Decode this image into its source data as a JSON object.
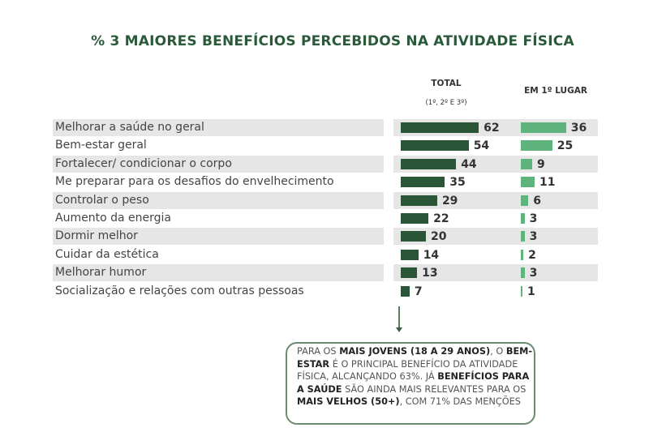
{
  "chart_data": {
    "type": "bar",
    "orientation": "horizontal",
    "title": "% 3 MAIORES BENEFÍCIOS PERCEBIDOS NA ATIVIDADE FÍSICA",
    "categories": [
      "Melhorar a saúde no geral",
      "Bem-estar geral",
      "Fortalecer/ condicionar o corpo",
      "Me preparar para os desafios do envelhecimento",
      "Controlar o peso",
      "Aumento da energia",
      "Dormir melhor",
      "Cuidar da estética",
      "Melhorar humor",
      "Socialização e relações com outras pessoas"
    ],
    "series": [
      {
        "name": "TOTAL",
        "subtitle": "(1º, 2º E 3º)",
        "color": "#2a5637",
        "values": [
          62,
          54,
          44,
          35,
          29,
          22,
          20,
          14,
          13,
          7
        ]
      },
      {
        "name": "EM 1º LUGAR",
        "color": "#5fb37c",
        "values": [
          36,
          25,
          9,
          11,
          6,
          3,
          3,
          2,
          3,
          1
        ]
      }
    ],
    "grid": false,
    "row_shading": "#e6e6e6"
  },
  "callout": {
    "segments": [
      {
        "t": "PARA OS ",
        "b": false
      },
      {
        "t": "MAIS JOVENS (18 A 29 ANOS)",
        "b": true
      },
      {
        "t": ", O ",
        "b": false
      },
      {
        "t": "BEM-ESTAR",
        "b": true
      },
      {
        "t": " É O PRINCIPAL BENEFÍCIO DA ATIVIDADE FÍSICA, ALCANÇANDO 63%. JÁ ",
        "b": false
      },
      {
        "t": "BENEFÍCIOS PARA A SAÚDE",
        "b": true
      },
      {
        "t": " SÃO AINDA MAIS RELEVANTES PARA OS ",
        "b": false
      },
      {
        "t": "MAIS VELHOS (50+)",
        "b": true
      },
      {
        "t": ", COM 71% DAS MENÇÕES",
        "b": false
      }
    ]
  }
}
